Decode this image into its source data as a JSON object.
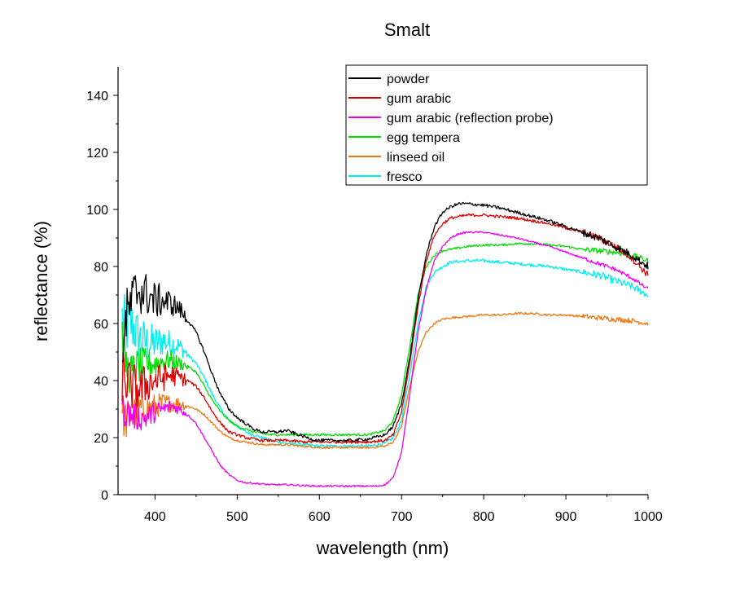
{
  "chart_data": {
    "type": "line",
    "title": "Smalt",
    "xlabel": "wavelength (nm)",
    "ylabel": "reflectance (%)",
    "xlim": [
      355,
      1000
    ],
    "ylim": [
      0,
      150
    ],
    "x_ticks": [
      400,
      500,
      600,
      700,
      800,
      900,
      1000
    ],
    "y_ticks": [
      0,
      20,
      40,
      60,
      80,
      100,
      120,
      140
    ],
    "legend_position": "top-right",
    "grid": false,
    "series": [
      {
        "name": "powder",
        "color": "#000000",
        "noise": 2.2,
        "points": [
          [
            360,
            52
          ],
          [
            365,
            62
          ],
          [
            370,
            66
          ],
          [
            375,
            70
          ],
          [
            380,
            72
          ],
          [
            390,
            70
          ],
          [
            400,
            68
          ],
          [
            410,
            68
          ],
          [
            420,
            67
          ],
          [
            430,
            65
          ],
          [
            440,
            61
          ],
          [
            450,
            57
          ],
          [
            460,
            50
          ],
          [
            470,
            42
          ],
          [
            480,
            35
          ],
          [
            490,
            30
          ],
          [
            500,
            27
          ],
          [
            510,
            25
          ],
          [
            520,
            23
          ],
          [
            530,
            22
          ],
          [
            540,
            22
          ],
          [
            550,
            22
          ],
          [
            560,
            22.5
          ],
          [
            570,
            21.5
          ],
          [
            580,
            20.5
          ],
          [
            590,
            19.5
          ],
          [
            600,
            19
          ],
          [
            620,
            19
          ],
          [
            640,
            19
          ],
          [
            660,
            19.5
          ],
          [
            680,
            21
          ],
          [
            690,
            24
          ],
          [
            700,
            32
          ],
          [
            710,
            48
          ],
          [
            720,
            68
          ],
          [
            730,
            84
          ],
          [
            740,
            94
          ],
          [
            750,
            99
          ],
          [
            760,
            101
          ],
          [
            770,
            102
          ],
          [
            780,
            102
          ],
          [
            800,
            101.5
          ],
          [
            820,
            100.5
          ],
          [
            840,
            99
          ],
          [
            860,
            97.5
          ],
          [
            880,
            96
          ],
          [
            900,
            94
          ],
          [
            920,
            92
          ],
          [
            940,
            90
          ],
          [
            960,
            87
          ],
          [
            980,
            84
          ],
          [
            1000,
            80
          ]
        ]
      },
      {
        "name": "gum arabic",
        "color": "#dd0000",
        "noise": 2.0,
        "points": [
          [
            360,
            42
          ],
          [
            365,
            40
          ],
          [
            370,
            38
          ],
          [
            380,
            37
          ],
          [
            390,
            39
          ],
          [
            400,
            40
          ],
          [
            410,
            41
          ],
          [
            420,
            42
          ],
          [
            430,
            41
          ],
          [
            440,
            40
          ],
          [
            450,
            38
          ],
          [
            460,
            34
          ],
          [
            470,
            29
          ],
          [
            480,
            25
          ],
          [
            490,
            22
          ],
          [
            500,
            21
          ],
          [
            510,
            20
          ],
          [
            520,
            19.5
          ],
          [
            530,
            19
          ],
          [
            540,
            19
          ],
          [
            560,
            19
          ],
          [
            580,
            18.5
          ],
          [
            600,
            18.5
          ],
          [
            620,
            18.5
          ],
          [
            640,
            18.5
          ],
          [
            660,
            18.5
          ],
          [
            680,
            19
          ],
          [
            690,
            21
          ],
          [
            700,
            29
          ],
          [
            710,
            46
          ],
          [
            720,
            66
          ],
          [
            730,
            82
          ],
          [
            740,
            91
          ],
          [
            750,
            95
          ],
          [
            760,
            97
          ],
          [
            770,
            97.5
          ],
          [
            780,
            98
          ],
          [
            800,
            98
          ],
          [
            820,
            97.5
          ],
          [
            840,
            97
          ],
          [
            860,
            96
          ],
          [
            880,
            95
          ],
          [
            900,
            93.5
          ],
          [
            920,
            92
          ],
          [
            940,
            90
          ],
          [
            960,
            87
          ],
          [
            980,
            83
          ],
          [
            1000,
            77
          ]
        ]
      },
      {
        "name": "gum arabic (reflection probe)",
        "color": "#ee00ee",
        "noise": 1.2,
        "points": [
          [
            360,
            30
          ],
          [
            370,
            28
          ],
          [
            380,
            27
          ],
          [
            390,
            27
          ],
          [
            400,
            29
          ],
          [
            410,
            30
          ],
          [
            420,
            31
          ],
          [
            430,
            30
          ],
          [
            440,
            28
          ],
          [
            450,
            25
          ],
          [
            460,
            20
          ],
          [
            470,
            15
          ],
          [
            480,
            10
          ],
          [
            490,
            7
          ],
          [
            500,
            5
          ],
          [
            510,
            4.2
          ],
          [
            520,
            4
          ],
          [
            540,
            3.5
          ],
          [
            560,
            3.5
          ],
          [
            580,
            3.2
          ],
          [
            600,
            3
          ],
          [
            620,
            3
          ],
          [
            640,
            3
          ],
          [
            660,
            3
          ],
          [
            670,
            3
          ],
          [
            680,
            3.5
          ],
          [
            690,
            6
          ],
          [
            700,
            15
          ],
          [
            710,
            35
          ],
          [
            720,
            57
          ],
          [
            730,
            72
          ],
          [
            740,
            82
          ],
          [
            750,
            87
          ],
          [
            760,
            90
          ],
          [
            770,
            91.5
          ],
          [
            780,
            92
          ],
          [
            800,
            92
          ],
          [
            820,
            91
          ],
          [
            840,
            90
          ],
          [
            860,
            88.5
          ],
          [
            880,
            87
          ],
          [
            900,
            85
          ],
          [
            920,
            83
          ],
          [
            940,
            81
          ],
          [
            960,
            79
          ],
          [
            980,
            76
          ],
          [
            1000,
            72
          ]
        ]
      },
      {
        "name": "egg tempera",
        "color": "#00dd00",
        "noise": 1.6,
        "points": [
          [
            360,
            55
          ],
          [
            365,
            45
          ],
          [
            370,
            42
          ],
          [
            375,
            44
          ],
          [
            380,
            45
          ],
          [
            390,
            46
          ],
          [
            400,
            46
          ],
          [
            410,
            47
          ],
          [
            420,
            47
          ],
          [
            430,
            46
          ],
          [
            440,
            45
          ],
          [
            450,
            43
          ],
          [
            460,
            38
          ],
          [
            470,
            33
          ],
          [
            480,
            29
          ],
          [
            490,
            26
          ],
          [
            500,
            24
          ],
          [
            510,
            23
          ],
          [
            520,
            22
          ],
          [
            530,
            21.5
          ],
          [
            540,
            21
          ],
          [
            560,
            21
          ],
          [
            580,
            21
          ],
          [
            600,
            21
          ],
          [
            620,
            21
          ],
          [
            640,
            21
          ],
          [
            660,
            21
          ],
          [
            680,
            22.5
          ],
          [
            690,
            26
          ],
          [
            700,
            35
          ],
          [
            710,
            52
          ],
          [
            720,
            70
          ],
          [
            730,
            80
          ],
          [
            740,
            84
          ],
          [
            750,
            85.5
          ],
          [
            760,
            86
          ],
          [
            780,
            87
          ],
          [
            800,
            87.5
          ],
          [
            820,
            87.5
          ],
          [
            840,
            88
          ],
          [
            860,
            88
          ],
          [
            880,
            87.5
          ],
          [
            900,
            87
          ],
          [
            920,
            86
          ],
          [
            940,
            85.5
          ],
          [
            960,
            85
          ],
          [
            980,
            84
          ],
          [
            1000,
            82
          ]
        ]
      },
      {
        "name": "linseed oil",
        "color": "#ee7711",
        "noise": 1.5,
        "points": [
          [
            360,
            28
          ],
          [
            365,
            26
          ],
          [
            370,
            28
          ],
          [
            375,
            29
          ],
          [
            380,
            30
          ],
          [
            390,
            30
          ],
          [
            400,
            31
          ],
          [
            410,
            32
          ],
          [
            420,
            32
          ],
          [
            430,
            32
          ],
          [
            440,
            31
          ],
          [
            450,
            30
          ],
          [
            460,
            28
          ],
          [
            470,
            25
          ],
          [
            480,
            22
          ],
          [
            490,
            20
          ],
          [
            500,
            19
          ],
          [
            510,
            18.5
          ],
          [
            520,
            18
          ],
          [
            530,
            17.5
          ],
          [
            540,
            17.5
          ],
          [
            560,
            17.5
          ],
          [
            580,
            17
          ],
          [
            600,
            16.5
          ],
          [
            620,
            16.5
          ],
          [
            640,
            16.5
          ],
          [
            660,
            16.5
          ],
          [
            680,
            17
          ],
          [
            690,
            18.5
          ],
          [
            700,
            24
          ],
          [
            710,
            38
          ],
          [
            720,
            50
          ],
          [
            730,
            57
          ],
          [
            740,
            60
          ],
          [
            750,
            61.5
          ],
          [
            760,
            62
          ],
          [
            780,
            62.5
          ],
          [
            800,
            63
          ],
          [
            820,
            63
          ],
          [
            840,
            63.5
          ],
          [
            860,
            63.5
          ],
          [
            880,
            63
          ],
          [
            900,
            63
          ],
          [
            920,
            62.5
          ],
          [
            940,
            62
          ],
          [
            960,
            61.5
          ],
          [
            980,
            61
          ],
          [
            1000,
            60
          ]
        ]
      },
      {
        "name": "fresco",
        "color": "#00eeee",
        "noise": 2.2,
        "points": [
          [
            360,
            62
          ],
          [
            365,
            58
          ],
          [
            370,
            60
          ],
          [
            375,
            58
          ],
          [
            380,
            55
          ],
          [
            390,
            53
          ],
          [
            400,
            53
          ],
          [
            410,
            54
          ],
          [
            420,
            53
          ],
          [
            430,
            52
          ],
          [
            440,
            49
          ],
          [
            450,
            46
          ],
          [
            460,
            41
          ],
          [
            470,
            35
          ],
          [
            480,
            30
          ],
          [
            490,
            26
          ],
          [
            500,
            24
          ],
          [
            510,
            22
          ],
          [
            520,
            21
          ],
          [
            530,
            20
          ],
          [
            540,
            19
          ],
          [
            560,
            18
          ],
          [
            580,
            17.5
          ],
          [
            600,
            17
          ],
          [
            620,
            17
          ],
          [
            640,
            17
          ],
          [
            660,
            17
          ],
          [
            680,
            18
          ],
          [
            690,
            20
          ],
          [
            700,
            26
          ],
          [
            710,
            42
          ],
          [
            720,
            60
          ],
          [
            730,
            73
          ],
          [
            740,
            78
          ],
          [
            750,
            80
          ],
          [
            760,
            81.5
          ],
          [
            780,
            82
          ],
          [
            800,
            82
          ],
          [
            820,
            81.5
          ],
          [
            840,
            81
          ],
          [
            860,
            80.5
          ],
          [
            880,
            80
          ],
          [
            900,
            79
          ],
          [
            920,
            78
          ],
          [
            940,
            77
          ],
          [
            960,
            75
          ],
          [
            980,
            73
          ],
          [
            1000,
            70
          ]
        ]
      }
    ]
  }
}
